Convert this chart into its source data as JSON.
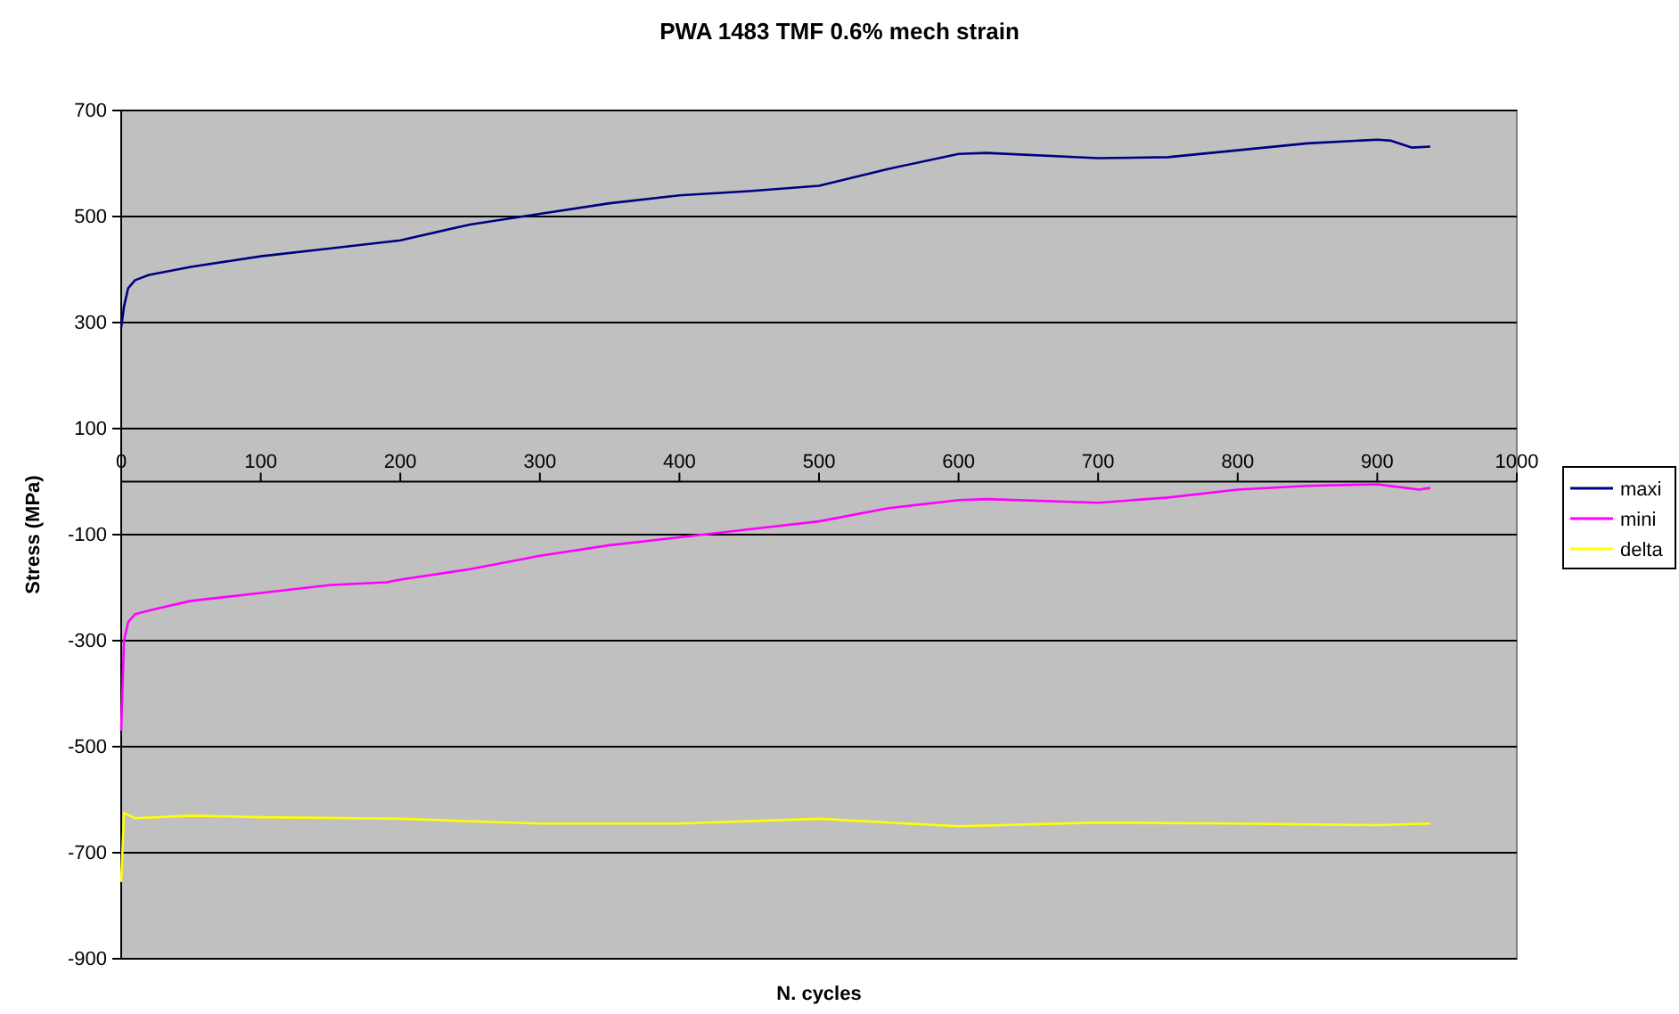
{
  "chart_data": {
    "type": "line",
    "title": "PWA 1483 TMF 0.6% mech strain",
    "xlabel": "N. cycles",
    "ylabel": "Stress (MPa)",
    "xlim": [
      0,
      1000
    ],
    "xticks": [
      0,
      100,
      200,
      300,
      400,
      500,
      600,
      700,
      800,
      900,
      1000
    ],
    "ylim": [
      -900,
      700
    ],
    "yticks": [
      700,
      500,
      300,
      100,
      -100,
      -300,
      -500,
      -700,
      -900
    ],
    "grid": "y",
    "legend": "right",
    "marker": "none",
    "line_style": "solid",
    "series": [
      {
        "name": "maxi",
        "color": "#000080",
        "x": [
          0,
          2,
          5,
          10,
          20,
          50,
          100,
          150,
          200,
          250,
          300,
          350,
          400,
          450,
          500,
          550,
          600,
          620,
          700,
          750,
          800,
          850,
          900,
          910,
          925,
          938
        ],
        "values": [
          290,
          330,
          365,
          380,
          390,
          405,
          425,
          440,
          455,
          485,
          505,
          525,
          540,
          548,
          558,
          590,
          618,
          620,
          610,
          612,
          625,
          638,
          645,
          643,
          630,
          632
        ]
      },
      {
        "name": "mini",
        "color": "#ff00ff",
        "x": [
          0,
          2,
          5,
          10,
          25,
          50,
          100,
          150,
          190,
          200,
          250,
          300,
          350,
          400,
          450,
          500,
          550,
          600,
          620,
          700,
          750,
          800,
          850,
          900,
          930,
          938
        ],
        "values": [
          -470,
          -300,
          -265,
          -250,
          -240,
          -225,
          -210,
          -195,
          -190,
          -185,
          -165,
          -140,
          -120,
          -105,
          -90,
          -75,
          -50,
          -35,
          -33,
          -40,
          -30,
          -15,
          -8,
          -5,
          -15,
          -12
        ]
      },
      {
        "name": "delta",
        "color": "#ffff00",
        "x": [
          0,
          2,
          10,
          50,
          100,
          200,
          300,
          400,
          500,
          600,
          700,
          800,
          900,
          938
        ],
        "values": [
          -755,
          -625,
          -635,
          -630,
          -633,
          -636,
          -645,
          -645,
          -636,
          -650,
          -643,
          -645,
          -648,
          -645
        ]
      }
    ]
  }
}
